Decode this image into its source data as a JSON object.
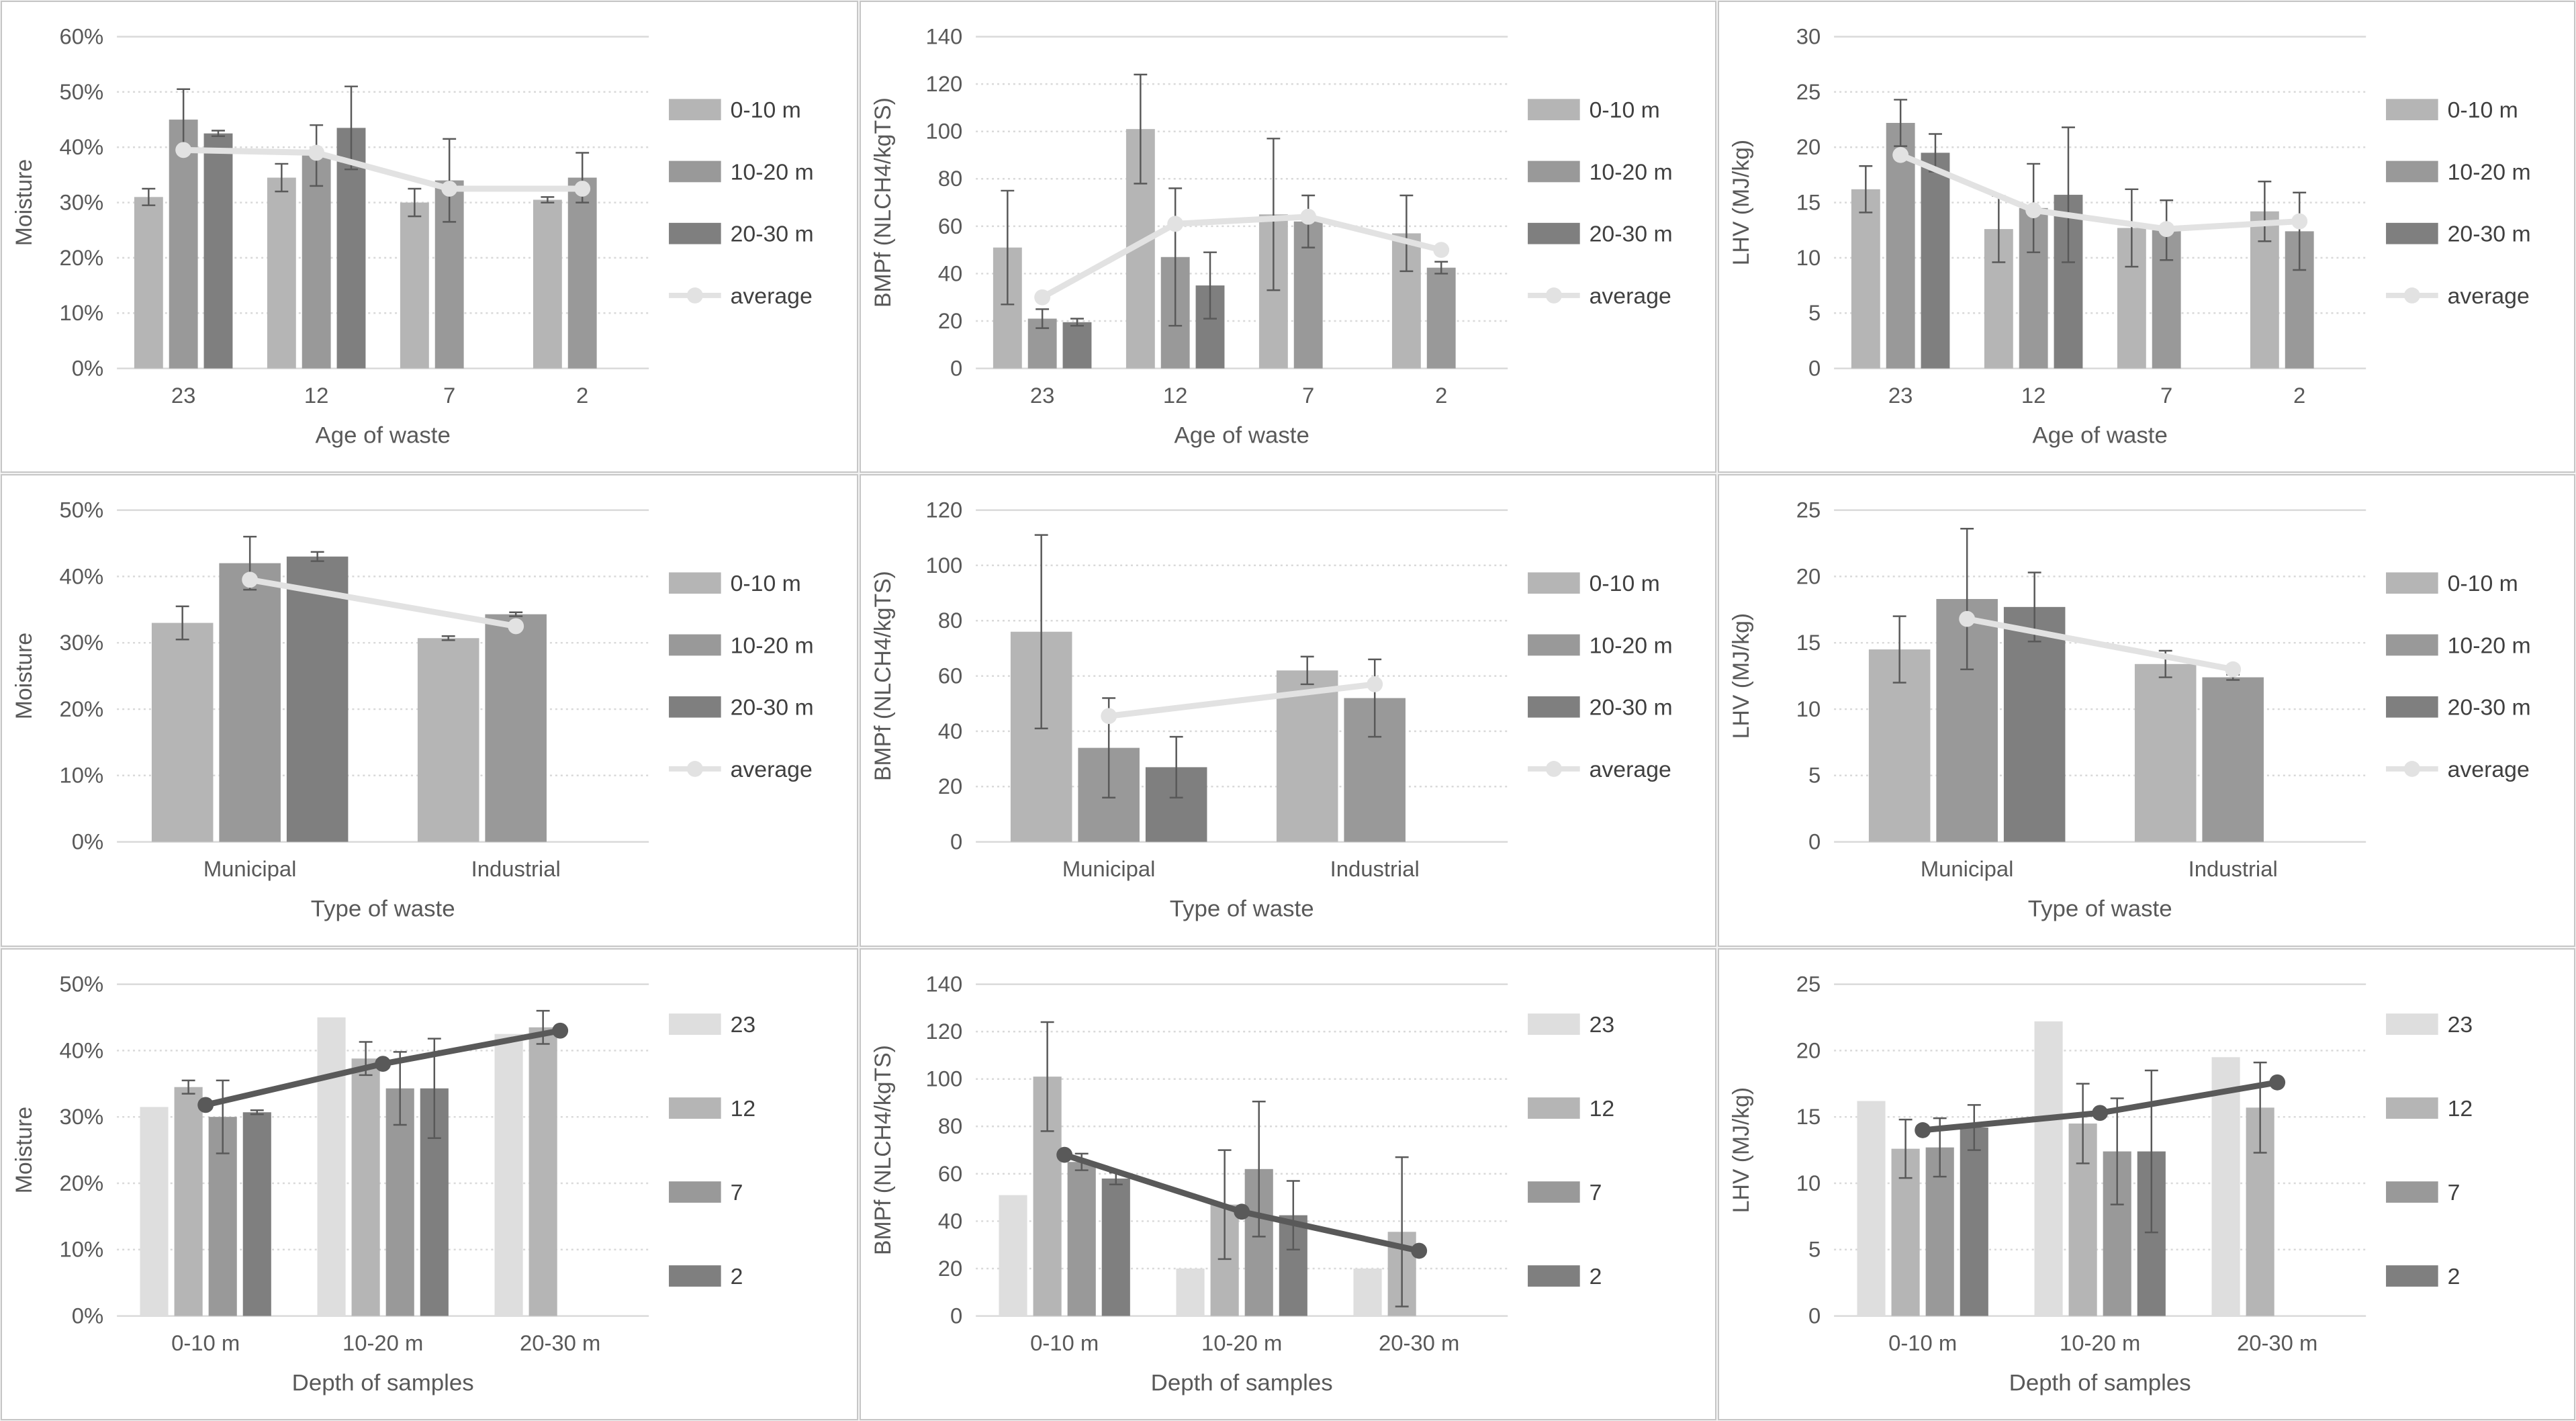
{
  "page": {
    "background": "#ffffff",
    "panel_border": "#c6c6c6",
    "gridline_color": "#d9d9d9",
    "text_color": "#595959",
    "error_bar_color": "#595959"
  },
  "chart_data": [
    {
      "type": "bar",
      "title": "",
      "ylabel": "Moisture",
      "xlabel": "Age of waste",
      "ylim": [
        0,
        60
      ],
      "ytick_step": 10,
      "percent": true,
      "grid": true,
      "legend_position": "right",
      "categories": [
        "23",
        "12",
        "7",
        "2"
      ],
      "series": [
        {
          "name": "0-10 m",
          "color": "#b5b5b5",
          "values": [
            31,
            34.5,
            30,
            30.5
          ],
          "errors": [
            1.5,
            2.5,
            2.5,
            0.5
          ]
        },
        {
          "name": "10-20 m",
          "color": "#999999",
          "values": [
            45,
            38.5,
            34,
            34.5
          ],
          "errors": [
            5.5,
            5.5,
            7.5,
            4.5
          ]
        },
        {
          "name": "20-30 m",
          "color": "#7f7f7f",
          "values": [
            42.5,
            43.5,
            null,
            null
          ],
          "errors": [
            0.5,
            7.5,
            null,
            null
          ]
        }
      ],
      "line_series": {
        "name": "average",
        "color": "#e2e2e2",
        "in_legend": true,
        "values": [
          39.5,
          39,
          32.5,
          32.5
        ]
      }
    },
    {
      "type": "bar",
      "title": "",
      "ylabel": "BMPf (NLCH4/kgTS)",
      "xlabel": "Age of waste",
      "ylim": [
        0,
        140
      ],
      "ytick_step": 20,
      "percent": false,
      "grid": true,
      "legend_position": "right",
      "categories": [
        "23",
        "12",
        "7",
        "2"
      ],
      "series": [
        {
          "name": "0-10 m",
          "color": "#b5b5b5",
          "values": [
            51,
            101,
            65,
            57
          ],
          "errors": [
            24,
            23,
            32,
            16
          ]
        },
        {
          "name": "10-20 m",
          "color": "#999999",
          "values": [
            21,
            47,
            62,
            42.5
          ],
          "errors": [
            4,
            29,
            11,
            2.5
          ]
        },
        {
          "name": "20-30 m",
          "color": "#7f7f7f",
          "values": [
            19.5,
            35,
            null,
            null
          ],
          "errors": [
            1.5,
            14,
            null,
            null
          ]
        }
      ],
      "line_series": {
        "name": "average",
        "color": "#e2e2e2",
        "in_legend": true,
        "values": [
          30,
          61,
          64,
          50
        ]
      }
    },
    {
      "type": "bar",
      "title": "",
      "ylabel": "LHV (MJ/kg)",
      "xlabel": "Age of waste",
      "ylim": [
        0,
        30
      ],
      "ytick_step": 5,
      "percent": false,
      "grid": true,
      "legend_position": "right",
      "categories": [
        "23",
        "12",
        "7",
        "2"
      ],
      "series": [
        {
          "name": "0-10 m",
          "color": "#b5b5b5",
          "values": [
            16.2,
            12.6,
            12.7,
            14.2
          ],
          "errors": [
            2.1,
            3.0,
            3.5,
            2.7
          ]
        },
        {
          "name": "10-20 m",
          "color": "#999999",
          "values": [
            22.2,
            14.5,
            12.5,
            12.4
          ],
          "errors": [
            2.1,
            4.0,
            2.7,
            3.5
          ]
        },
        {
          "name": "20-30 m",
          "color": "#7f7f7f",
          "values": [
            19.5,
            15.7,
            null,
            null
          ],
          "errors": [
            1.7,
            6.1,
            null,
            null
          ]
        }
      ],
      "line_series": {
        "name": "average",
        "color": "#e2e2e2",
        "in_legend": true,
        "values": [
          19.3,
          14.3,
          12.6,
          13.3
        ]
      }
    },
    {
      "type": "bar",
      "title": "",
      "ylabel": "Moisture",
      "xlabel": "Type of waste",
      "ylim": [
        0,
        50
      ],
      "ytick_step": 10,
      "percent": true,
      "grid": true,
      "legend_position": "right",
      "categories": [
        "Municipal",
        "Industrial"
      ],
      "series": [
        {
          "name": "0-10 m",
          "color": "#b5b5b5",
          "values": [
            33,
            30.7
          ],
          "errors": [
            2.5,
            0.3
          ]
        },
        {
          "name": "10-20 m",
          "color": "#999999",
          "values": [
            42,
            34.3
          ],
          "errors": [
            4,
            0.3
          ]
        },
        {
          "name": "20-30 m",
          "color": "#7f7f7f",
          "values": [
            43,
            null
          ],
          "errors": [
            0.7,
            null
          ]
        }
      ],
      "line_series": {
        "name": "average",
        "color": "#e2e2e2",
        "in_legend": true,
        "values": [
          39.5,
          32.5
        ]
      }
    },
    {
      "type": "bar",
      "title": "",
      "ylabel": "BMPf (NLCH4/kgTS)",
      "xlabel": "Type of waste",
      "ylim": [
        0,
        120
      ],
      "ytick_step": 20,
      "percent": false,
      "grid": true,
      "legend_position": "right",
      "categories": [
        "Municipal",
        "Industrial"
      ],
      "series": [
        {
          "name": "0-10 m",
          "color": "#b5b5b5",
          "values": [
            76,
            62
          ],
          "errors": [
            35,
            5
          ]
        },
        {
          "name": "10-20 m",
          "color": "#999999",
          "values": [
            34,
            52
          ],
          "errors": [
            18,
            14
          ]
        },
        {
          "name": "20-30 m",
          "color": "#7f7f7f",
          "values": [
            27,
            null
          ],
          "errors": [
            11,
            null
          ]
        }
      ],
      "line_series": {
        "name": "average",
        "color": "#e2e2e2",
        "in_legend": true,
        "values": [
          45.5,
          57
        ]
      }
    },
    {
      "type": "bar",
      "title": "",
      "ylabel": "LHV (MJ/kg)",
      "xlabel": "Type of waste",
      "ylim": [
        0,
        25
      ],
      "ytick_step": 5,
      "percent": false,
      "grid": true,
      "legend_position": "right",
      "categories": [
        "Municipal",
        "Industrial"
      ],
      "series": [
        {
          "name": "0-10 m",
          "color": "#b5b5b5",
          "values": [
            14.5,
            13.4
          ],
          "errors": [
            2.5,
            1.0
          ]
        },
        {
          "name": "10-20 m",
          "color": "#999999",
          "values": [
            18.3,
            12.4
          ],
          "errors": [
            5.3,
            0.2
          ]
        },
        {
          "name": "20-30 m",
          "color": "#7f7f7f",
          "values": [
            17.7,
            null
          ],
          "errors": [
            2.6,
            null
          ]
        }
      ],
      "line_series": {
        "name": "average",
        "color": "#e2e2e2",
        "in_legend": true,
        "values": [
          16.8,
          13.0
        ]
      }
    },
    {
      "type": "bar",
      "title": "",
      "ylabel": "Moisture",
      "xlabel": "Depth of samples",
      "ylim": [
        0,
        50
      ],
      "ytick_step": 10,
      "percent": true,
      "grid": true,
      "legend_position": "right",
      "categories": [
        "0-10 m",
        "10-20 m",
        "20-30 m"
      ],
      "series": [
        {
          "name": "23",
          "color": "#dedede",
          "values": [
            31.5,
            45,
            42.5
          ],
          "errors": [
            null,
            null,
            null
          ]
        },
        {
          "name": "12",
          "color": "#b5b5b5",
          "values": [
            34.5,
            38.8,
            43.5
          ],
          "errors": [
            1,
            2.5,
            2.5
          ]
        },
        {
          "name": "7",
          "color": "#999999",
          "values": [
            30,
            34.3,
            null
          ],
          "errors": [
            5.5,
            5.5,
            null
          ]
        },
        {
          "name": "2",
          "color": "#7f7f7f",
          "values": [
            30.7,
            34.3,
            null
          ],
          "errors": [
            0.3,
            7.5,
            null
          ]
        }
      ],
      "line_series": {
        "name": "",
        "color": "#595959",
        "in_legend": false,
        "values": [
          31.8,
          38,
          43
        ]
      }
    },
    {
      "type": "bar",
      "title": "",
      "ylabel": "BMPf (NLCH4/kgTS)",
      "xlabel": "Depth of samples",
      "ylim": [
        0,
        140
      ],
      "ytick_step": 20,
      "percent": false,
      "grid": true,
      "legend_position": "right",
      "categories": [
        "0-10 m",
        "10-20 m",
        "20-30 m"
      ],
      "series": [
        {
          "name": "23",
          "color": "#dedede",
          "values": [
            51,
            20,
            20
          ],
          "errors": [
            null,
            null,
            null
          ]
        },
        {
          "name": "12",
          "color": "#b5b5b5",
          "values": [
            101,
            47,
            35.5
          ],
          "errors": [
            23,
            23,
            31.5
          ]
        },
        {
          "name": "7",
          "color": "#999999",
          "values": [
            65,
            62,
            null
          ],
          "errors": [
            3.5,
            28.5,
            null
          ]
        },
        {
          "name": "2",
          "color": "#7f7f7f",
          "values": [
            58,
            42.5,
            null
          ],
          "errors": [
            2.5,
            14.5,
            null
          ]
        }
      ],
      "line_series": {
        "name": "",
        "color": "#595959",
        "in_legend": false,
        "values": [
          68,
          44,
          27.5
        ]
      }
    },
    {
      "type": "bar",
      "title": "",
      "ylabel": "LHV (MJ/kg)",
      "xlabel": "Depth of samples",
      "ylim": [
        0,
        25
      ],
      "ytick_step": 5,
      "percent": false,
      "grid": true,
      "legend_position": "right",
      "categories": [
        "0-10 m",
        "10-20 m",
        "20-30 m"
      ],
      "series": [
        {
          "name": "23",
          "color": "#dedede",
          "values": [
            16.2,
            22.2,
            19.5
          ],
          "errors": [
            null,
            null,
            null
          ]
        },
        {
          "name": "12",
          "color": "#b5b5b5",
          "values": [
            12.6,
            14.5,
            15.7
          ],
          "errors": [
            2.2,
            3.0,
            3.4
          ]
        },
        {
          "name": "7",
          "color": "#999999",
          "values": [
            12.7,
            12.4,
            null
          ],
          "errors": [
            2.2,
            4.0,
            null
          ]
        },
        {
          "name": "2",
          "color": "#7f7f7f",
          "values": [
            14.2,
            12.4,
            null
          ],
          "errors": [
            1.7,
            6.1,
            null
          ]
        }
      ],
      "line_series": {
        "name": "",
        "color": "#595959",
        "in_legend": false,
        "values": [
          14,
          15.3,
          17.6
        ]
      }
    }
  ]
}
